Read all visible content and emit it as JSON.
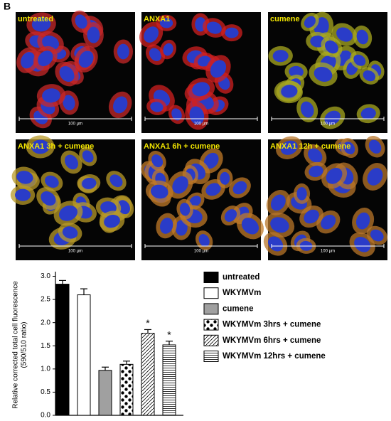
{
  "panel_label": "B",
  "images": [
    {
      "label": "untreated",
      "scale": "100 µm",
      "tint": "#c8282a"
    },
    {
      "label": "ANXA1",
      "scale": "100 µm",
      "tint": "#d02020"
    },
    {
      "label": "cumene",
      "scale": "100 µm",
      "tint": "#a8a820"
    },
    {
      "label": "ANXA1 3h + cumene",
      "scale": "100 µm",
      "tint": "#b89a28"
    },
    {
      "label": "ANXA1 6h + cumene",
      "scale": "100 µm",
      "tint": "#c07a28"
    },
    {
      "label": "ANXA1 12h + cumene",
      "scale": "100 µm",
      "tint": "#b8762a"
    }
  ],
  "chart_data": {
    "type": "bar",
    "ylabel": [
      "Relative corrected total cell fluorescence",
      "(590/510 ratio)"
    ],
    "categories": [
      "untreated",
      "WKYMVm",
      "cumene",
      "WKYMVm 3hrs + cumene",
      "WKYMVm 6hrs + cumene",
      "WKYMVm 12hrs + cumene"
    ],
    "values": [
      2.83,
      2.6,
      0.97,
      1.1,
      1.77,
      1.52
    ],
    "errors": [
      0.08,
      0.13,
      0.07,
      0.07,
      0.08,
      0.08
    ],
    "value_annotations": [
      null,
      null,
      null,
      null,
      "*",
      "*"
    ],
    "colors": [
      "#000000",
      "#ffffff",
      "#a0a0a0",
      "#ffffff",
      "#ffffff",
      "#ffffff"
    ],
    "patterns": [
      "solid",
      "solid",
      "solid",
      "dots",
      "diagonal",
      "horizontal"
    ],
    "ylim": [
      0,
      3.1
    ],
    "yticks": [
      {
        "value": 0,
        "label": "0.0"
      },
      0.5,
      {
        "value": 1,
        "label": "1.0"
      },
      1.5,
      {
        "value": 2,
        "label": "2.0"
      },
      2.5,
      {
        "value": 3,
        "label": "3.0"
      }
    ]
  }
}
